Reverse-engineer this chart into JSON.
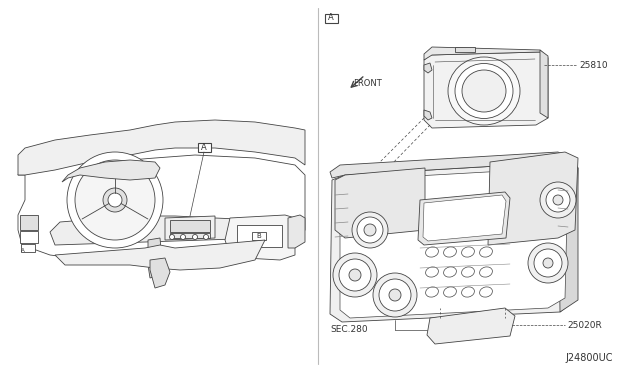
{
  "bg_color": "#ffffff",
  "line_color": "#444444",
  "text_color": "#333333",
  "label_A_left": "A",
  "label_A_right": "A",
  "part_25810": "25810",
  "part_25020R": "25020R",
  "label_front": "FRONT",
  "label_sec": "SEC.280",
  "label_code": "J24800UC",
  "figsize": [
    6.4,
    3.72
  ],
  "dpi": 100
}
